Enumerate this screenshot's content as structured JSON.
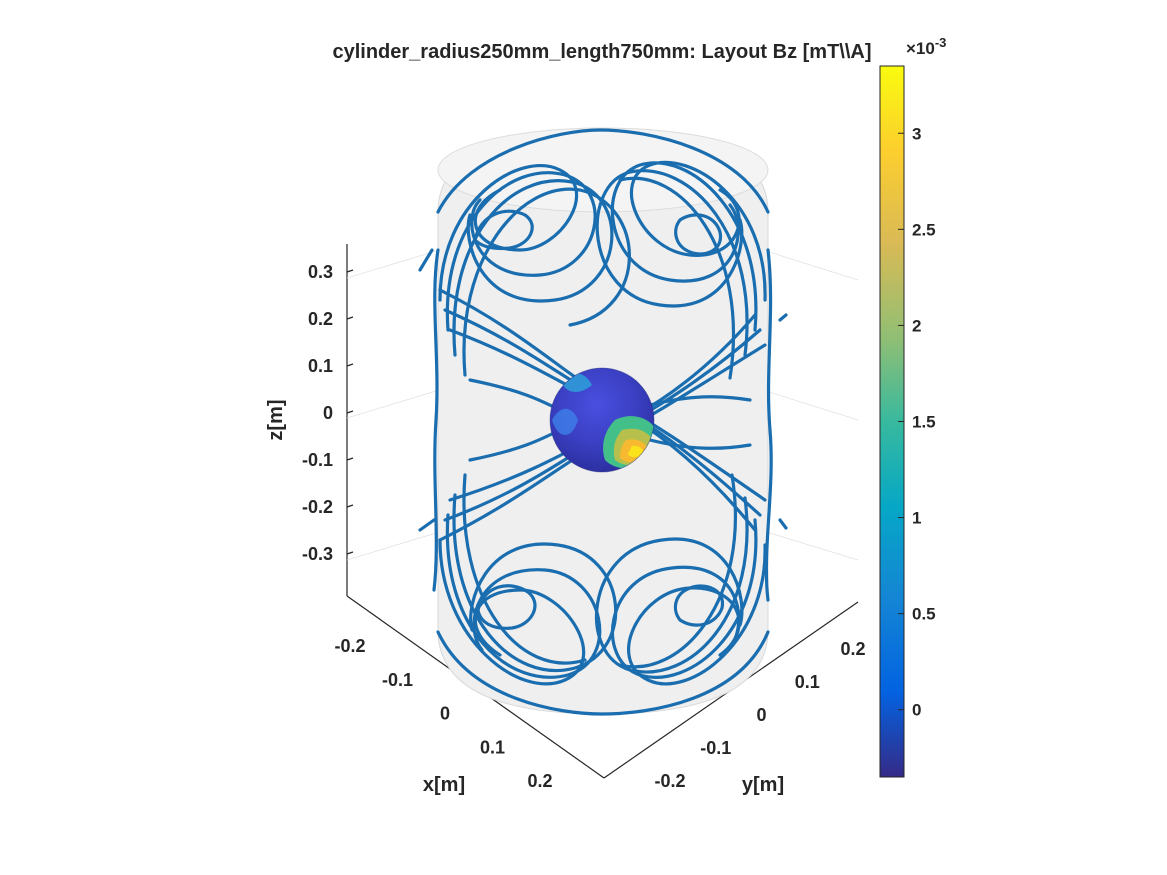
{
  "chart_data": {
    "type": "surface",
    "title": "cylinder_radius250mm_length750mm: Layout Bz [mT\\\\A]",
    "xlabel": "x[m]",
    "ylabel": "y[m]",
    "zlabel": "z[m]",
    "x_ticks": [
      "-0.2",
      "-0.1",
      "0",
      "0.1",
      "0.2"
    ],
    "y_ticks": [
      "-0.2",
      "-0.1",
      "0",
      "0.1",
      "0.2"
    ],
    "z_ticks": [
      "0.3",
      "0.2",
      "0.1",
      "0",
      "-0.1",
      "-0.2",
      "-0.3"
    ],
    "xlim": [
      -0.25,
      0.25
    ],
    "ylim": [
      -0.25,
      0.25
    ],
    "zlim": [
      -0.375,
      0.375
    ],
    "grid": true,
    "colorbar": {
      "colormap": "parula",
      "multiplier": "×10",
      "exponent": "-3",
      "ticks": [
        "3",
        "2.5",
        "2",
        "1.5",
        "1",
        "0.5",
        "0"
      ],
      "range": [
        -0.35,
        3.35
      ]
    },
    "series": [
      {
        "label": "coil-windings",
        "color": "#1f77b4"
      },
      {
        "label": "target-sphere-bz",
        "color": "#3b40c8"
      }
    ]
  },
  "colors": {
    "wire": "#1a6eb0",
    "cylinder_fill": "#ececec",
    "axis": "#262626"
  }
}
